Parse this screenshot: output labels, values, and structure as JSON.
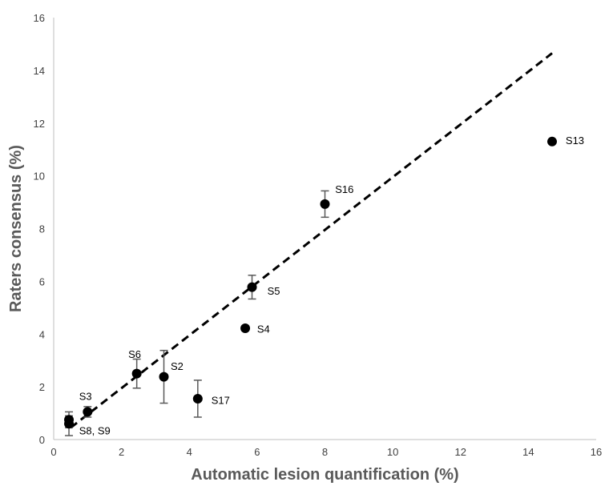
{
  "chart_data": {
    "type": "scatter",
    "title": "",
    "xlabel": "Automatic lesion quantification (%)",
    "ylabel": "Raters consensus (%)",
    "xlim": [
      0,
      16
    ],
    "ylim": [
      0,
      16
    ],
    "xticks": [
      "0",
      "2",
      "4",
      "6",
      "8",
      "10",
      "12",
      "14",
      "16"
    ],
    "yticks": [
      "0",
      "2",
      "4",
      "6",
      "8",
      "10",
      "12",
      "14",
      "16"
    ],
    "grid": false,
    "legend": "none",
    "point_color": "#000000",
    "points": [
      {
        "x": 0.45,
        "y": 0.75,
        "err_low": 0.3,
        "err_high": 0.3
      },
      {
        "x": 0.45,
        "y": 0.6,
        "err_low": 0.45,
        "err_high": 0.3
      },
      {
        "x": 1.0,
        "y": 1.05,
        "err_low": 0.2,
        "err_high": 0.2
      },
      {
        "x": 2.45,
        "y": 2.5,
        "err_low": 0.55,
        "err_high": 0.55
      },
      {
        "x": 3.25,
        "y": 2.38,
        "err_low": 1.0,
        "err_high": 1.0
      },
      {
        "x": 4.25,
        "y": 1.55,
        "err_low": 0.7,
        "err_high": 0.7
      },
      {
        "x": 5.65,
        "y": 4.22,
        "err_low": 0,
        "err_high": 0
      },
      {
        "x": 5.85,
        "y": 5.78,
        "err_low": 0.45,
        "err_high": 0.45
      },
      {
        "x": 8.0,
        "y": 8.93,
        "err_low": 0.5,
        "err_high": 0.5
      },
      {
        "x": 14.7,
        "y": 11.3,
        "err_low": 0,
        "err_high": 0
      }
    ],
    "annotations": [
      {
        "text": "S8, S9",
        "x": 0.75,
        "y": 0.35
      },
      {
        "text": "S3",
        "x": 0.75,
        "y": 1.65
      },
      {
        "text": "S6",
        "x": 2.2,
        "y": 3.25
      },
      {
        "text": "S2",
        "x": 3.45,
        "y": 2.8
      },
      {
        "text": "S17",
        "x": 4.65,
        "y": 1.5
      },
      {
        "text": "S4",
        "x": 6.0,
        "y": 4.2
      },
      {
        "text": "S5",
        "x": 6.3,
        "y": 5.65
      },
      {
        "text": "S16",
        "x": 8.3,
        "y": 9.5
      },
      {
        "text": "S13",
        "x": 15.1,
        "y": 11.35
      }
    ],
    "trendline": {
      "style": "dashed",
      "x": [
        0.5,
        14.7
      ],
      "y": [
        0.45,
        14.65
      ]
    }
  }
}
